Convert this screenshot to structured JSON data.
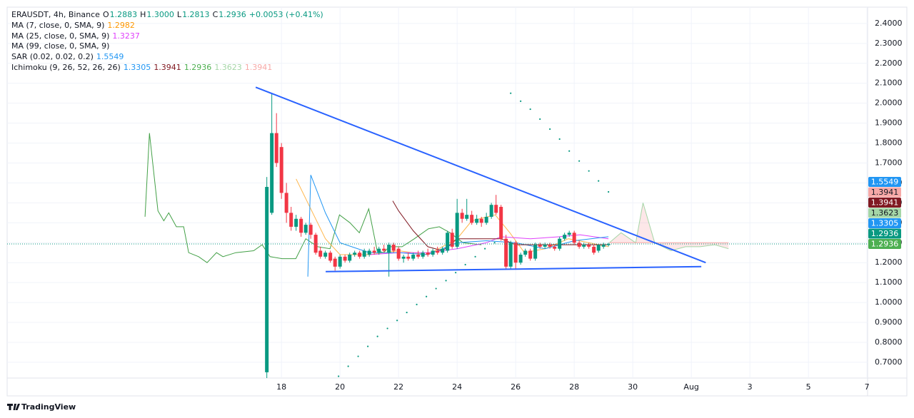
{
  "legend": {
    "symbol": "ERAUSDT, 4h, Binance",
    "ohlc": [
      {
        "key": "O",
        "value": "1.2883"
      },
      {
        "key": "H",
        "value": "1.3000"
      },
      {
        "key": "L",
        "value": "1.2813"
      },
      {
        "key": "C",
        "value": "1.2936"
      }
    ],
    "change": "+0.0053 (+0.41%)",
    "value_color": "#089981",
    "indicators": [
      {
        "name": "MA (7, close, 0, SMA, 9)",
        "values": [
          {
            "text": "1.2982",
            "color": "#ff9800"
          }
        ]
      },
      {
        "name": "MA (25, close, 0, SMA, 9)",
        "values": [
          {
            "text": "1.3237",
            "color": "#e040fb"
          }
        ]
      },
      {
        "name": "MA (99, close, 0, SMA, 9)",
        "values": []
      },
      {
        "name": "SAR (0.02, 0.02, 0.2)",
        "values": [
          {
            "text": "1.5549",
            "color": "#2196f3"
          }
        ]
      },
      {
        "name": "Ichimoku (9, 26, 52, 26, 26)",
        "values": [
          {
            "text": "1.3305",
            "color": "#2196f3"
          },
          {
            "text": "1.3941",
            "color": "#801922"
          },
          {
            "text": "1.2936",
            "color": "#4caf50"
          },
          {
            "text": "1.3623",
            "color": "#a5d6a7"
          },
          {
            "text": "1.3941",
            "color": "#f7a9a7"
          }
        ]
      }
    ]
  },
  "footer": {
    "brand": "TradingView"
  },
  "chart_data": {
    "type": "candlestick",
    "up_color": "#089981",
    "down_color": "#f23645",
    "grid": true,
    "xlim": [
      8.63,
      38.02
    ],
    "ylim": [
      0.621,
      2.482
    ],
    "xticks": [
      18,
      20,
      22,
      24,
      26,
      28,
      30,
      {
        "value": 32,
        "label": "Aug"
      },
      {
        "value": 34,
        "label": "3"
      },
      {
        "value": 36,
        "label": "5"
      },
      {
        "value": 38,
        "label": "7"
      }
    ],
    "yticks": [
      {
        "value": 0.7,
        "label": "0.7000"
      },
      {
        "value": 0.8,
        "label": "0.8000"
      },
      {
        "value": 0.9,
        "label": "0.9000"
      },
      {
        "value": 1.0,
        "label": "1.0000"
      },
      {
        "value": 1.1,
        "label": "1.1000"
      },
      {
        "value": 1.2,
        "label": "1.2000"
      },
      {
        "value": 1.3,
        "label": "1.3000"
      },
      {
        "value": 1.4,
        "label": "1.4000"
      },
      {
        "value": 1.5,
        "label": "1.5000"
      },
      {
        "value": 1.6,
        "label": "1.6000"
      },
      {
        "value": 1.7,
        "label": "1.7000"
      },
      {
        "value": 1.8,
        "label": "1.8000"
      },
      {
        "value": 1.9,
        "label": "1.9000"
      },
      {
        "value": 2.0,
        "label": "2.0000"
      },
      {
        "value": 2.1,
        "label": "2.1000"
      },
      {
        "value": 2.2,
        "label": "2.2000"
      },
      {
        "value": 2.3,
        "label": "2.3000"
      },
      {
        "value": 2.4,
        "label": "2.4000"
      }
    ],
    "x": [
      17.5,
      17.67,
      17.83,
      18.0,
      18.17,
      18.33,
      18.5,
      18.67,
      18.83,
      19.0,
      19.17,
      19.33,
      19.5,
      19.67,
      19.83,
      20.0,
      20.17,
      20.33,
      20.5,
      20.67,
      20.83,
      21.0,
      21.17,
      21.33,
      21.5,
      21.67,
      21.83,
      22.0,
      22.17,
      22.33,
      22.5,
      22.67,
      22.83,
      23.0,
      23.17,
      23.33,
      23.5,
      23.67,
      23.83,
      24.0,
      24.17,
      24.33,
      24.5,
      24.67,
      24.83,
      25.0,
      25.17,
      25.33,
      25.5,
      25.67,
      25.83,
      26.0,
      26.17,
      26.33,
      26.5,
      26.67,
      26.83,
      27.0,
      27.17,
      27.33,
      27.5,
      27.67,
      27.83,
      28.0,
      28.17,
      28.33,
      28.5,
      28.67,
      28.83,
      29.0,
      29.17
    ],
    "open": [
      0.65,
      1.45,
      1.85,
      1.78,
      1.55,
      1.45,
      1.38,
      1.42,
      1.35,
      1.39,
      1.34,
      1.26,
      1.23,
      1.25,
      1.22,
      1.18,
      1.23,
      1.21,
      1.24,
      1.25,
      1.23,
      1.24,
      1.26,
      1.25,
      1.27,
      1.25,
      1.29,
      1.27,
      1.22,
      1.23,
      1.22,
      1.24,
      1.23,
      1.25,
      1.24,
      1.26,
      1.25,
      1.26,
      1.35,
      1.28,
      1.45,
      1.42,
      1.44,
      1.4,
      1.42,
      1.4,
      1.43,
      1.49,
      1.48,
      1.32,
      1.18,
      1.3,
      1.2,
      1.24,
      1.26,
      1.22,
      1.29,
      1.28,
      1.29,
      1.28,
      1.27,
      1.32,
      1.34,
      1.35,
      1.3,
      1.28,
      1.29,
      1.28,
      1.26,
      1.28,
      1.2883
    ],
    "high": [
      1.63,
      2.05,
      1.95,
      1.8,
      1.6,
      1.48,
      1.44,
      1.43,
      1.4,
      1.4,
      1.35,
      1.28,
      1.26,
      1.26,
      1.23,
      1.24,
      1.24,
      1.25,
      1.26,
      1.26,
      1.27,
      1.27,
      1.28,
      1.28,
      1.29,
      1.3,
      1.3,
      1.28,
      1.24,
      1.25,
      1.25,
      1.26,
      1.26,
      1.27,
      1.27,
      1.28,
      1.28,
      1.36,
      1.37,
      1.52,
      1.47,
      1.52,
      1.46,
      1.44,
      1.43,
      1.45,
      1.5,
      1.54,
      1.49,
      1.34,
      1.31,
      1.31,
      1.25,
      1.27,
      1.27,
      1.3,
      1.3,
      1.3,
      1.3,
      1.29,
      1.33,
      1.35,
      1.36,
      1.36,
      1.31,
      1.3,
      1.3,
      1.29,
      1.29,
      1.3,
      1.3
    ],
    "low": [
      0.62,
      1.44,
      1.68,
      1.52,
      1.4,
      1.36,
      1.36,
      1.33,
      1.34,
      1.32,
      1.24,
      1.22,
      1.22,
      1.2,
      1.16,
      1.17,
      1.2,
      1.2,
      1.23,
      1.22,
      1.22,
      1.23,
      1.24,
      1.24,
      1.25,
      1.13,
      1.25,
      1.21,
      1.2,
      1.21,
      1.21,
      1.22,
      1.22,
      1.23,
      1.23,
      1.24,
      1.24,
      1.25,
      1.27,
      1.27,
      1.4,
      1.41,
      1.39,
      1.39,
      1.38,
      1.39,
      1.42,
      1.44,
      1.31,
      1.17,
      1.17,
      1.17,
      1.19,
      1.23,
      1.21,
      1.21,
      1.27,
      1.27,
      1.27,
      1.26,
      1.26,
      1.31,
      1.33,
      1.29,
      1.27,
      1.27,
      1.27,
      1.24,
      1.25,
      1.27,
      1.2813
    ],
    "close": [
      1.58,
      1.85,
      1.7,
      1.55,
      1.45,
      1.38,
      1.42,
      1.35,
      1.39,
      1.34,
      1.25,
      1.23,
      1.25,
      1.21,
      1.18,
      1.23,
      1.21,
      1.24,
      1.25,
      1.23,
      1.26,
      1.26,
      1.25,
      1.27,
      1.26,
      1.29,
      1.26,
      1.22,
      1.23,
      1.22,
      1.24,
      1.23,
      1.25,
      1.24,
      1.26,
      1.25,
      1.27,
      1.35,
      1.28,
      1.45,
      1.42,
      1.44,
      1.4,
      1.42,
      1.4,
      1.43,
      1.49,
      1.45,
      1.32,
      1.18,
      1.3,
      1.2,
      1.24,
      1.26,
      1.22,
      1.29,
      1.28,
      1.29,
      1.28,
      1.27,
      1.32,
      1.34,
      1.35,
      1.3,
      1.28,
      1.29,
      1.28,
      1.25,
      1.29,
      1.29,
      1.2936
    ],
    "lines": [
      {
        "color": "#43a047",
        "x": [
          13.34,
          13.49,
          13.78,
          13.98,
          14.15,
          14.41,
          14.66,
          14.83,
          15.17,
          15.46,
          15.78,
          16.0,
          16.44,
          17.05,
          17.34,
          17.61,
          18.02,
          18.49,
          18.83,
          19.24,
          19.66,
          19.98,
          20.34,
          20.66,
          20.98,
          21.27,
          21.49,
          21.68,
          22.12,
          22.54,
          23.02,
          23.39,
          23.76,
          24.2,
          24.83
        ],
        "values": [
          1.43,
          1.85,
          1.46,
          1.41,
          1.45,
          1.38,
          1.38,
          1.25,
          1.23,
          1.2,
          1.25,
          1.23,
          1.25,
          1.26,
          1.29,
          1.23,
          1.22,
          1.22,
          1.32,
          1.28,
          1.27,
          1.44,
          1.4,
          1.35,
          1.47,
          1.26,
          1.25,
          1.28,
          1.28,
          1.32,
          1.37,
          1.38,
          1.35,
          1.3,
          1.29
        ]
      },
      {
        "color": "#ffb74d",
        "x": [
          18.5,
          19.0,
          19.5,
          20.0,
          21.0,
          22.0,
          23.0,
          24.0,
          24.5,
          25.3,
          25.8,
          26.3,
          27.0,
          27.8,
          28.5,
          29.17
        ],
        "values": [
          1.62,
          1.47,
          1.32,
          1.24,
          1.24,
          1.26,
          1.24,
          1.32,
          1.41,
          1.44,
          1.35,
          1.25,
          1.27,
          1.32,
          1.3,
          1.28
        ]
      },
      {
        "color": "#e040fb",
        "x": [
          21.0,
          22.0,
          23.0,
          24.0,
          25.0,
          25.5,
          26.5,
          27.5,
          28.2,
          29.17
        ],
        "values": [
          1.24,
          1.25,
          1.25,
          1.27,
          1.3,
          1.33,
          1.32,
          1.33,
          1.34,
          1.32
        ]
      },
      {
        "color": "#2196f3",
        "x": [
          18.9,
          19.0,
          19.5,
          20.0,
          21.0,
          22.0,
          23.0,
          24.0,
          25.0,
          26.0,
          27.0,
          28.0,
          29.17
        ],
        "values": [
          1.13,
          1.64,
          1.45,
          1.3,
          1.25,
          1.25,
          1.24,
          1.3,
          1.31,
          1.3,
          1.27,
          1.31,
          1.33
        ]
      },
      {
        "color": "#801922",
        "x": [
          21.8,
          22.0,
          22.5,
          23.0,
          23.5,
          24.0,
          25.5,
          26.0,
          29.17
        ],
        "values": [
          1.51,
          1.46,
          1.36,
          1.28,
          1.26,
          1.32,
          1.32,
          1.29,
          1.29
        ]
      }
    ],
    "sar": {
      "color": "#089981",
      "x": [
        19.95,
        20.28,
        20.62,
        20.95,
        21.28,
        21.62,
        21.95,
        22.28,
        22.62,
        22.95,
        23.28,
        23.62,
        23.95,
        24.28,
        24.62,
        24.95,
        25.28,
        25.83,
        26.17,
        26.5,
        26.83,
        27.17,
        27.5,
        27.83,
        28.17,
        28.5,
        28.83,
        29.17
      ],
      "values": [
        0.63,
        0.68,
        0.73,
        0.78,
        0.83,
        0.87,
        0.91,
        0.95,
        0.99,
        1.03,
        1.07,
        1.11,
        1.15,
        1.19,
        1.23,
        1.27,
        1.3,
        2.05,
        2.01,
        1.97,
        1.92,
        1.87,
        1.82,
        1.76,
        1.71,
        1.66,
        1.61,
        1.555
      ]
    },
    "cloud": {
      "color_a": "#a5d6a7",
      "color_b": "#f7a9a7",
      "fill": "#f23645",
      "x": [
        29.2,
        29.6,
        30.1,
        30.35,
        30.75,
        31.3,
        31.8,
        32.3,
        32.8,
        33.27
      ],
      "span_a": [
        1.3,
        1.35,
        1.3,
        1.5,
        1.3,
        1.26,
        1.28,
        1.28,
        1.29,
        1.27
      ],
      "span_b": [
        1.3,
        1.3,
        1.3,
        1.3,
        1.3,
        1.3,
        1.3,
        1.3,
        1.3,
        1.3
      ]
    },
    "trendlines": [
      {
        "color": "#2962ff",
        "x": [
          17.12,
          32.49
        ],
        "values": [
          2.08,
          1.2
        ]
      },
      {
        "color": "#2962ff",
        "x": [
          19.51,
          32.34
        ],
        "values": [
          1.155,
          1.18
        ]
      }
    ],
    "last_price": 1.2936,
    "price_labels": [
      {
        "value": 1.5549,
        "color": "#2196f3"
      },
      {
        "value": 1.3941,
        "color": "#f7a9a7"
      },
      {
        "value": 1.3941,
        "color": "#801922"
      },
      {
        "value": 1.3623,
        "color": "#a5d6a7"
      },
      {
        "value": 1.3305,
        "color": "#2196f3"
      },
      {
        "value": 1.2936,
        "color": "#089981"
      },
      {
        "value": 1.2936,
        "color": "#4caf50"
      }
    ]
  }
}
